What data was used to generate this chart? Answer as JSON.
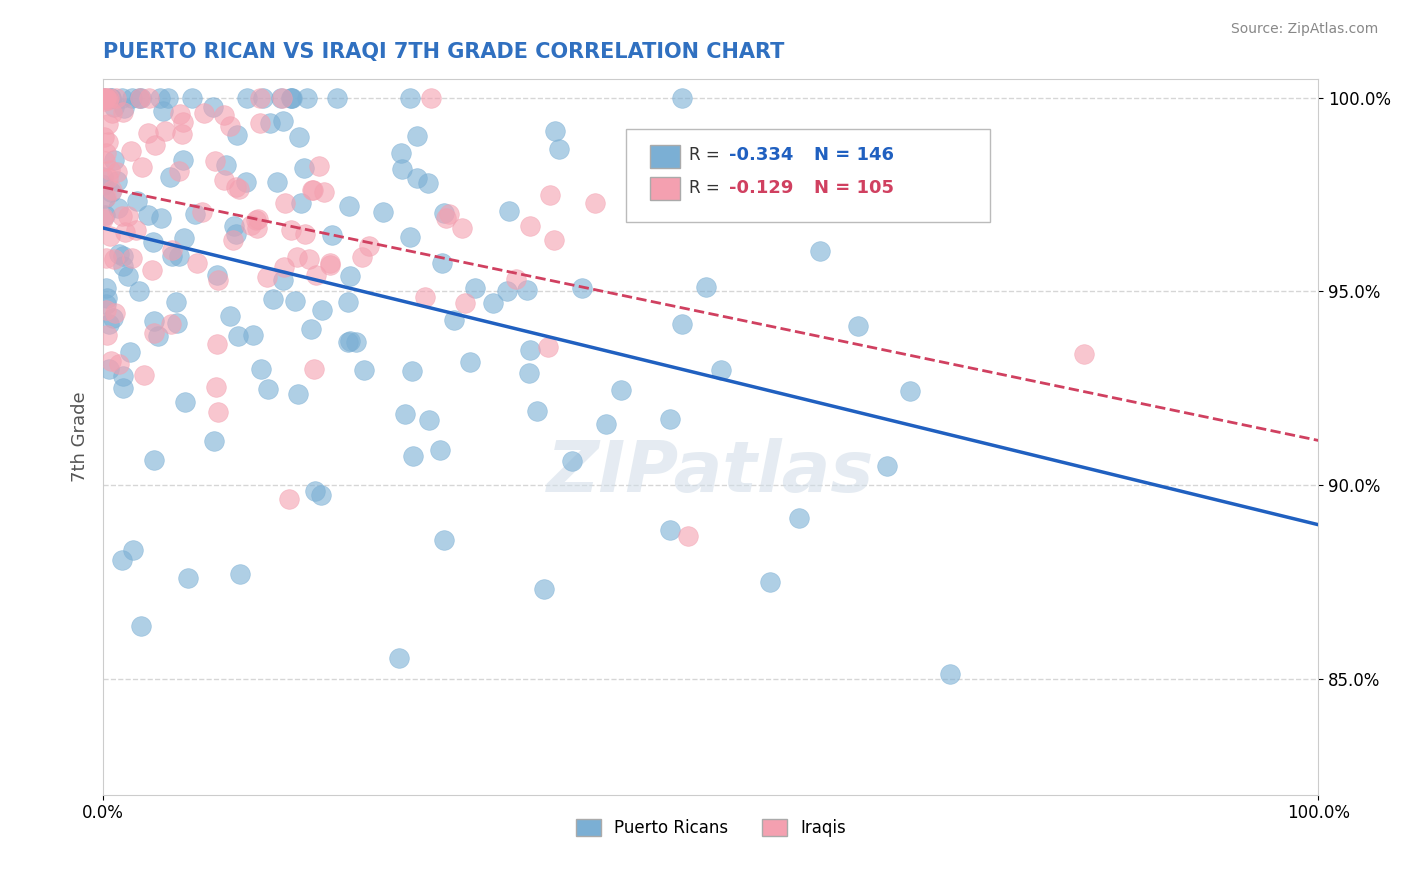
{
  "title": "PUERTO RICAN VS IRAQI 7TH GRADE CORRELATION CHART",
  "source_text": "Source: ZipAtlas.com",
  "xlabel": "",
  "ylabel": "7th Grade",
  "xlim": [
    0.0,
    1.0
  ],
  "ylim": [
    0.82,
    1.005
  ],
  "xtick_labels": [
    "0.0%",
    "100.0%"
  ],
  "ytick_labels": [
    "85.0%",
    "90.0%",
    "95.0%",
    "100.0%"
  ],
  "ytick_vals": [
    0.85,
    0.9,
    0.95,
    1.0
  ],
  "legend_labels": [
    "Puerto Ricans",
    "Iraqis"
  ],
  "legend_r_vals": [
    "R = -0.334   N = 146",
    "R =  -0.129   N = 105"
  ],
  "blue_color": "#7bafd4",
  "pink_color": "#f4a0b0",
  "blue_line_color": "#2060c0",
  "pink_line_color": "#d04060",
  "R_blue": -0.334,
  "N_blue": 146,
  "R_pink": -0.129,
  "N_pink": 105,
  "watermark": "ZIPatlas",
  "background_color": "#ffffff",
  "grid_color": "#cccccc",
  "title_color": "#3070c0"
}
